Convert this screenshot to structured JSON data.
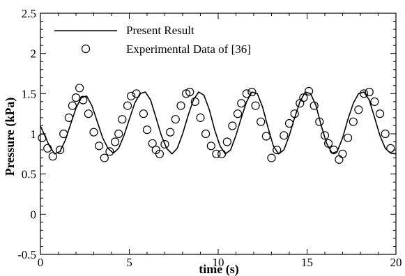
{
  "chart_data": {
    "type": "line",
    "xlabel": "time (s)",
    "ylabel": "Pressure (kPa)",
    "xlim": [
      0,
      20
    ],
    "ylim": [
      -0.5,
      2.5
    ],
    "x_ticks": [
      "0",
      "5",
      "10",
      "15",
      "20"
    ],
    "y_ticks": [
      "-0.5",
      "0",
      "0.5",
      "1",
      "1.5",
      "2",
      "2.5"
    ],
    "grid": false,
    "legend_position": "top-left",
    "series": [
      {
        "name": "Present Result",
        "style": "solid line",
        "color": "#000000",
        "x": [
          0,
          0.2,
          0.5,
          0.8,
          1.1,
          1.4,
          1.7,
          2.0,
          2.3,
          2.6,
          2.9,
          3.2,
          3.5,
          3.8,
          4.1,
          4.4,
          4.7,
          5.0,
          5.3,
          5.6,
          5.9,
          6.2,
          6.5,
          6.8,
          7.1,
          7.4,
          7.7,
          8.0,
          8.3,
          8.6,
          8.9,
          9.2,
          9.5,
          9.8,
          10.1,
          10.4,
          10.7,
          11.0,
          11.3,
          11.6,
          11.9,
          12.2,
          12.5,
          12.8,
          13.1,
          13.4,
          13.7,
          14.0,
          14.3,
          14.6,
          14.9,
          15.2,
          15.5,
          15.8,
          16.1,
          16.4,
          16.7,
          17.0,
          17.3,
          17.6,
          17.9,
          18.2,
          18.5,
          18.8,
          19.1,
          19.4,
          19.7,
          20.0
        ],
        "values": [
          1.1,
          1.0,
          0.85,
          0.75,
          0.78,
          0.92,
          1.12,
          1.32,
          1.45,
          1.47,
          1.35,
          1.15,
          0.95,
          0.82,
          0.76,
          0.82,
          0.98,
          1.18,
          1.38,
          1.5,
          1.52,
          1.42,
          1.2,
          0.98,
          0.82,
          0.75,
          0.82,
          1.0,
          1.22,
          1.42,
          1.52,
          1.48,
          1.3,
          1.05,
          0.85,
          0.75,
          0.8,
          0.98,
          1.2,
          1.4,
          1.52,
          1.5,
          1.33,
          1.08,
          0.85,
          0.75,
          0.8,
          0.98,
          1.2,
          1.4,
          1.52,
          1.5,
          1.35,
          1.1,
          0.88,
          0.76,
          0.78,
          0.95,
          1.18,
          1.38,
          1.5,
          1.52,
          1.42,
          1.2,
          0.98,
          0.82,
          0.76,
          0.75
        ]
      },
      {
        "name": "Experimental Data of [36]",
        "style": "open circles",
        "color": "#000000",
        "x": [
          0.1,
          0.4,
          0.7,
          1.1,
          1.3,
          1.6,
          1.8,
          2.0,
          2.2,
          2.4,
          2.7,
          3.0,
          3.3,
          3.6,
          3.9,
          4.2,
          4.4,
          4.6,
          4.9,
          5.1,
          5.4,
          5.8,
          6.0,
          6.3,
          6.5,
          6.7,
          7.0,
          7.3,
          7.6,
          7.9,
          8.2,
          8.4,
          8.7,
          9.0,
          9.3,
          9.6,
          9.9,
          10.2,
          10.5,
          10.8,
          11.1,
          11.3,
          11.6,
          11.9,
          12.1,
          12.4,
          12.7,
          13.0,
          13.3,
          13.7,
          14.0,
          14.3,
          14.6,
          14.8,
          15.1,
          15.4,
          15.7,
          16.0,
          16.2,
          16.5,
          16.8,
          17.0,
          17.3,
          17.6,
          17.9,
          18.2,
          18.5,
          18.8,
          19.1,
          19.4,
          19.7
        ],
        "values": [
          0.95,
          0.82,
          0.72,
          0.8,
          1.0,
          1.2,
          1.35,
          1.45,
          1.57,
          1.42,
          1.25,
          1.02,
          0.85,
          0.7,
          0.78,
          0.9,
          1.0,
          1.18,
          1.35,
          1.47,
          1.5,
          1.25,
          1.05,
          0.88,
          0.8,
          0.75,
          0.87,
          1.02,
          1.18,
          1.35,
          1.5,
          1.52,
          1.4,
          1.2,
          1.0,
          0.85,
          0.75,
          0.75,
          0.9,
          1.1,
          1.25,
          1.38,
          1.5,
          1.52,
          1.35,
          1.15,
          0.97,
          0.7,
          0.8,
          0.98,
          1.13,
          1.25,
          1.38,
          1.45,
          1.53,
          1.35,
          1.15,
          0.98,
          0.88,
          0.8,
          0.68,
          0.75,
          0.95,
          1.15,
          1.3,
          1.5,
          1.52,
          1.4,
          1.25,
          1.0,
          0.82
        ]
      }
    ]
  }
}
